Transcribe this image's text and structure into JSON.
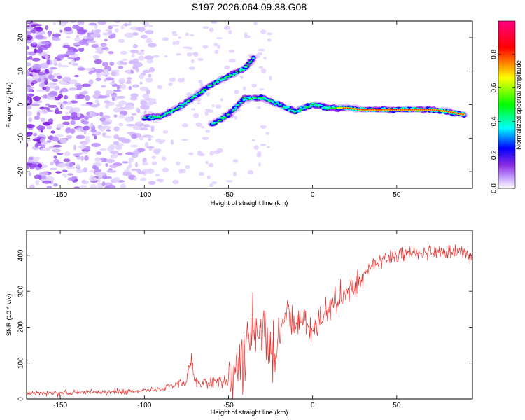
{
  "figure_title": "S197.2026.064.09.38.G08",
  "chart_data": [
    {
      "type": "heatmap",
      "name": "spectrogram",
      "xlabel": "Height of straight line (km)",
      "ylabel": "Frequency (Hz)",
      "xlim": [
        -170,
        95
      ],
      "ylim": [
        -25,
        25
      ],
      "xticks": [
        -150,
        -100,
        -50,
        0,
        50
      ],
      "yticks": [
        -20,
        -10,
        0,
        10,
        20
      ],
      "colorbar": {
        "label": "Normalized spectral amplitude",
        "range": [
          0,
          1
        ],
        "ticks": [
          0.0,
          0.2,
          0.4,
          0.6,
          0.8
        ],
        "colors": [
          "#ffffff",
          "#c9a6ff",
          "#8a2be2",
          "#0000ff",
          "#00ffff",
          "#00ff00",
          "#ffff00",
          "#ff0000",
          "#ff0080"
        ]
      },
      "ridge_segments": [
        {
          "name": "ascending",
          "x": [
            -100,
            -90,
            -80,
            -70,
            -60,
            -50,
            -40,
            -35
          ],
          "y": [
            -4,
            -3.5,
            -1,
            2.5,
            6,
            8.5,
            11,
            14
          ]
        },
        {
          "name": "descending",
          "x": [
            -60,
            -50,
            -40,
            -30,
            -20,
            -10,
            0,
            10,
            20,
            30,
            40,
            50,
            60,
            70,
            80,
            90
          ],
          "y": [
            -6,
            -3,
            2,
            2,
            0,
            -2,
            0,
            -1,
            -1,
            -1.5,
            -1.5,
            -1.5,
            -1.5,
            -1.5,
            -2,
            -3
          ]
        }
      ],
      "noise_region_x": [
        -170,
        -95
      ]
    },
    {
      "type": "line",
      "name": "snr",
      "xlabel": "Height of straight line (km)",
      "ylabel": "SNR (10 * v/v)",
      "xlim": [
        -170,
        95
      ],
      "ylim": [
        0,
        470
      ],
      "xticks": [
        -150,
        -100,
        -50,
        0,
        50
      ],
      "yticks": [
        0,
        100,
        200,
        300,
        400
      ],
      "color": "#e8302d",
      "series": [
        {
          "name": "SNR",
          "x": [
            -170,
            -150,
            -130,
            -110,
            -100,
            -90,
            -80,
            -75,
            -72,
            -70,
            -60,
            -55,
            -50,
            -48,
            -45,
            -42,
            -40,
            -38,
            -35,
            -32,
            -30,
            -28,
            -25,
            -22,
            -20,
            -15,
            -10,
            -5,
            0,
            5,
            10,
            15,
            20,
            25,
            30,
            35,
            40,
            45,
            50,
            60,
            70,
            80,
            90,
            95
          ],
          "y": [
            15,
            18,
            20,
            20,
            25,
            28,
            40,
            50,
            110,
            45,
            45,
            50,
            45,
            60,
            90,
            110,
            150,
            170,
            200,
            180,
            210,
            195,
            150,
            120,
            175,
            240,
            210,
            230,
            175,
            230,
            250,
            280,
            290,
            320,
            340,
            370,
            385,
            395,
            400,
            405,
            410,
            410,
            405,
            400
          ]
        }
      ]
    }
  ]
}
